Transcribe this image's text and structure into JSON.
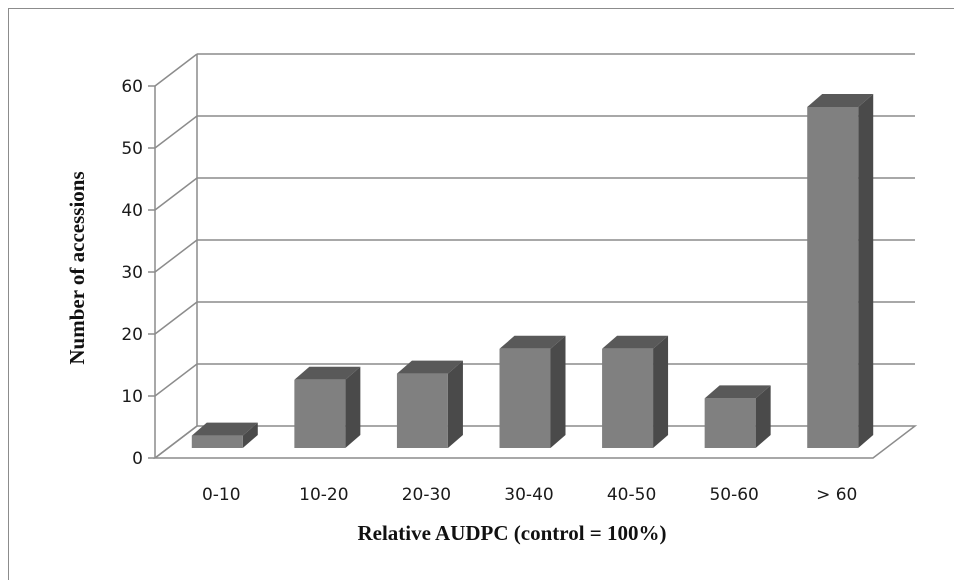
{
  "chart_data": {
    "type": "bar",
    "style": "3d-column",
    "categories": [
      "0-10",
      "10-20",
      "20-30",
      "30-40",
      "40-50",
      "50-60",
      "> 60"
    ],
    "series": [
      {
        "values": [
          2,
          11,
          12,
          16,
          16,
          8,
          55
        ]
      }
    ],
    "xlabel": "Relative AUDPC (control = 100%)",
    "ylabel": "Number of accessions",
    "ylim": [
      0,
      60
    ],
    "yticks": [
      "0",
      "10",
      "20",
      "30",
      "40",
      "50",
      "60"
    ],
    "grid": true,
    "legend": "none",
    "colors": {
      "bar_front": "#808080",
      "bar_top": "#595959",
      "bar_side": "#4a4a4a",
      "grid": "#8c8c8c"
    }
  }
}
